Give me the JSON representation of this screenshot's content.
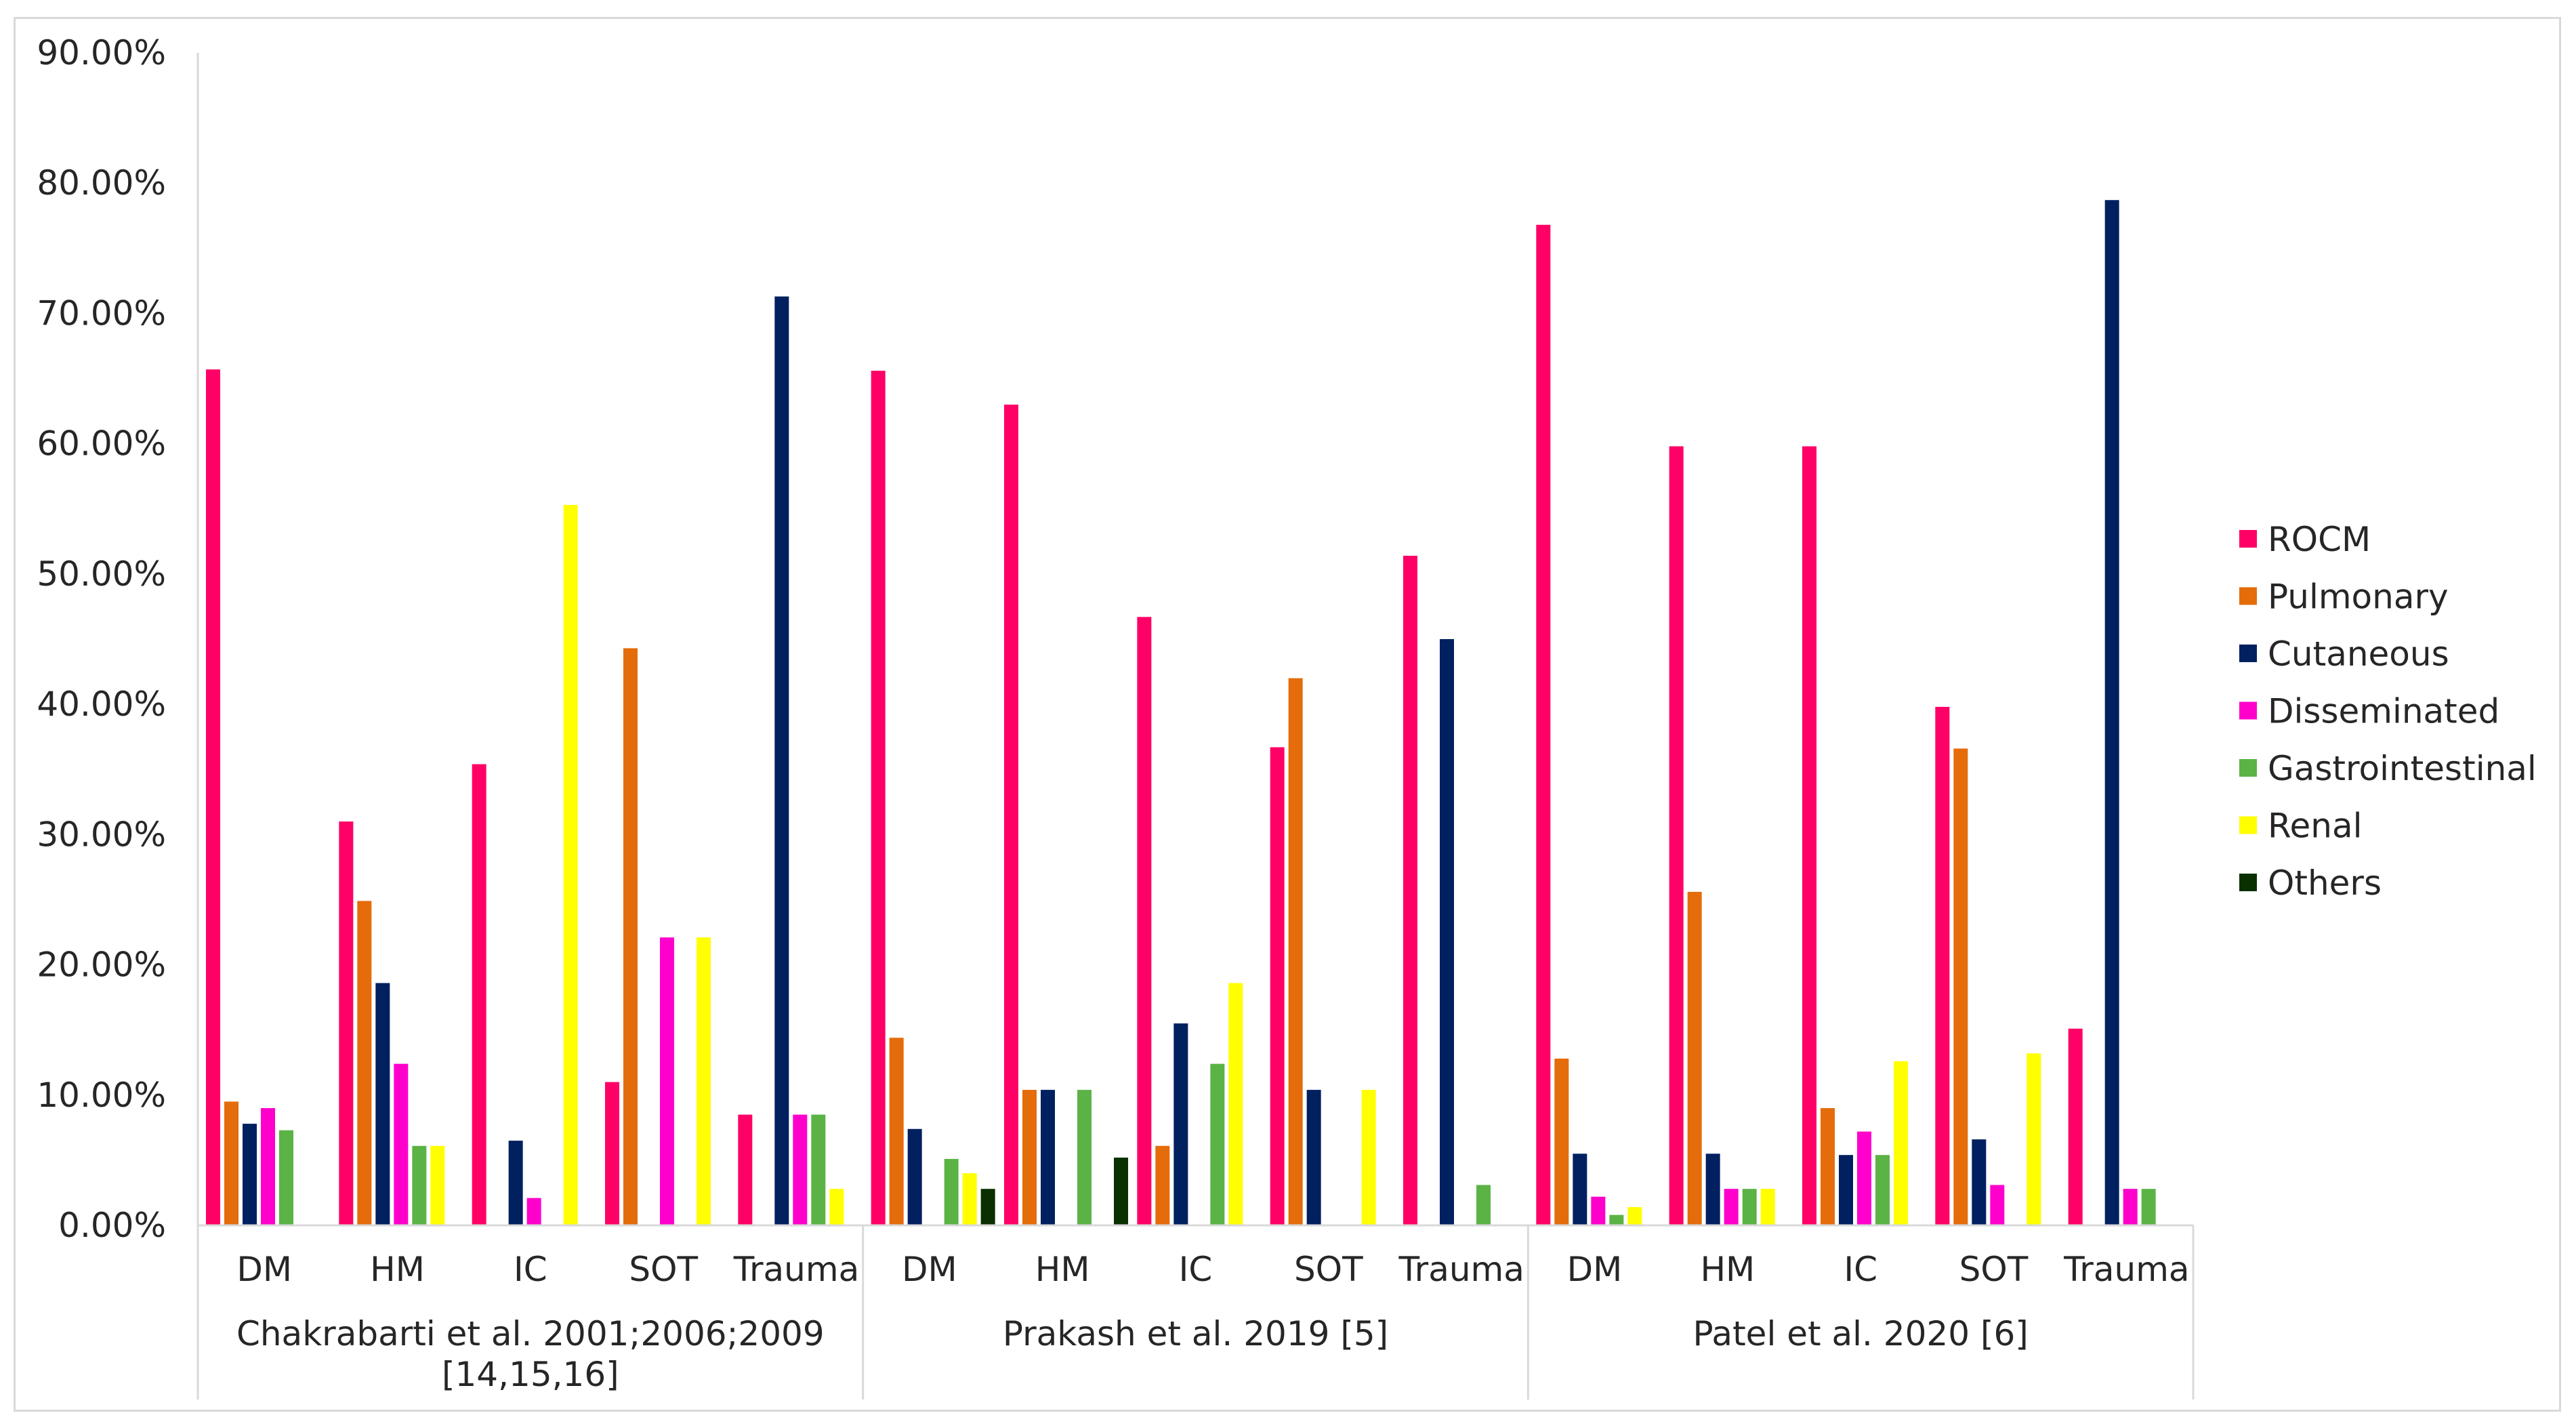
{
  "chart_data": {
    "type": "bar",
    "title": "",
    "xlabel": "",
    "ylabel": "",
    "ylim": [
      0,
      90
    ],
    "y_tick_labels": [
      "0.00%",
      "10.00%",
      "20.00%",
      "30.00%",
      "40.00%",
      "50.00%",
      "60.00%",
      "70.00%",
      "80.00%",
      "90.00%"
    ],
    "grid": false,
    "legend_position": "right",
    "groups": [
      {
        "label_lines": [
          "Chakrabarti et al. 2001;2006;2009",
          "[14,15,16]"
        ],
        "categories": [
          "DM",
          "HM",
          "IC",
          "SOT",
          "Trauma"
        ]
      },
      {
        "label_lines": [
          "Prakash et al. 2019 [5]"
        ],
        "categories": [
          "DM",
          "HM",
          "IC",
          "SOT",
          "Trauma"
        ]
      },
      {
        "label_lines": [
          "Patel et al. 2020 [6]"
        ],
        "categories": [
          "DM",
          "HM",
          "IC",
          "SOT",
          "Trauma"
        ]
      }
    ],
    "series": [
      {
        "name": "ROCM",
        "color": "#ff0066",
        "values": [
          65.7,
          31.0,
          35.4,
          11.0,
          8.5,
          65.6,
          63.0,
          46.7,
          36.7,
          51.4,
          76.8,
          59.8,
          59.8,
          39.8,
          15.1
        ]
      },
      {
        "name": "Pulmonary",
        "color": "#e46c0a",
        "values": [
          9.5,
          24.9,
          0,
          44.3,
          0,
          14.4,
          10.4,
          6.1,
          42.0,
          0,
          12.8,
          25.6,
          9.0,
          36.6,
          0
        ]
      },
      {
        "name": "Cutaneous",
        "color": "#002060",
        "values": [
          7.8,
          18.6,
          6.5,
          0,
          71.3,
          7.4,
          10.4,
          15.5,
          10.4,
          45.0,
          5.5,
          5.5,
          5.4,
          6.6,
          78.7
        ]
      },
      {
        "name": "Disseminated",
        "color": "#ff00cc",
        "values": [
          9.0,
          12.4,
          2.1,
          22.1,
          8.5,
          0,
          0,
          0,
          0,
          0,
          2.2,
          2.8,
          7.2,
          3.1,
          2.8
        ]
      },
      {
        "name": "Gastrointestinal",
        "color": "#5bb346",
        "values": [
          7.3,
          6.1,
          0,
          0,
          8.5,
          5.1,
          10.4,
          12.4,
          0,
          3.1,
          0.8,
          2.8,
          5.4,
          0,
          2.8
        ]
      },
      {
        "name": "Renal",
        "color": "#ffff00",
        "values": [
          0,
          6.1,
          55.3,
          22.1,
          2.8,
          4.0,
          0,
          18.6,
          10.4,
          0,
          1.4,
          2.8,
          12.6,
          13.2,
          0
        ]
      },
      {
        "name": "Others",
        "color": "#0a3000",
        "values": [
          0,
          0,
          0,
          0,
          0,
          2.8,
          5.2,
          0,
          0,
          0,
          0,
          0,
          0,
          0,
          0
        ]
      }
    ]
  }
}
